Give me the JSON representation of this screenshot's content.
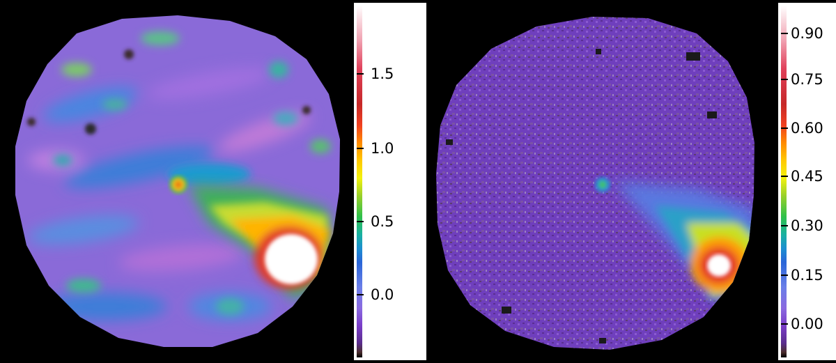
{
  "left_colorbar": {
    "ticks": [
      "1.5",
      "1.0",
      "0.5",
      "0.0"
    ]
  },
  "right_colorbar": {
    "ticks": [
      "0.90",
      "0.75",
      "0.60",
      "0.45",
      "0.30",
      "0.15",
      "0.00"
    ]
  },
  "colors": {
    "background": "#000000",
    "hot_spot": "#ffffff",
    "rim": "#d32f2f"
  }
}
